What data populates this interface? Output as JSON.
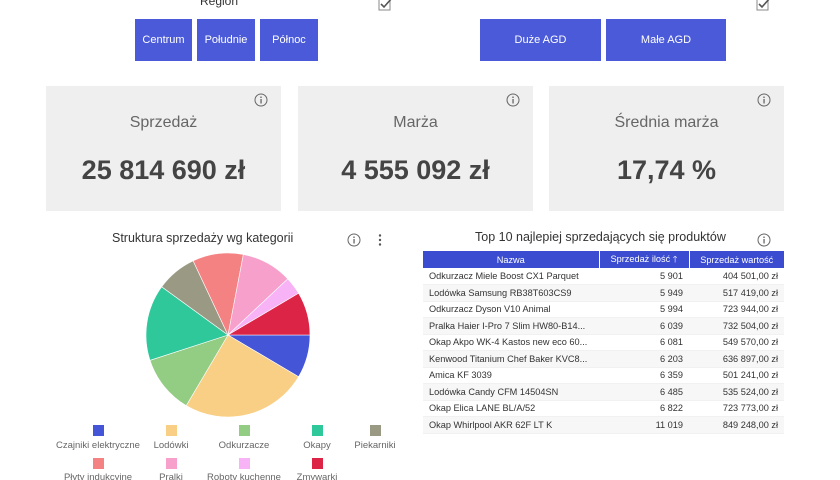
{
  "slicers": {
    "region": {
      "title": "Region",
      "buttons": [
        "Centrum",
        "Południe",
        "Północ"
      ]
    },
    "category": {
      "buttons": [
        "Duże AGD",
        "Małe AGD"
      ]
    }
  },
  "kpis": [
    {
      "label": "Sprzedaż",
      "value": "25 814 690 zł"
    },
    {
      "label": "Marża",
      "value": "4 555 092 zł"
    },
    {
      "label": "Średnia marża",
      "value": "17,74 %"
    }
  ],
  "pie": {
    "title": "Struktura sprzedaży wg kategorii"
  },
  "chart_data": {
    "type": "pie",
    "title": "Struktura sprzedaży wg kategorii",
    "legend_position": "bottom",
    "categories": [
      "Czajniki elektryczne",
      "Lodówki",
      "Odkurzacze",
      "Okapy",
      "Piekarniki",
      "Płyty indukcyjne",
      "Pralki",
      "Roboty kuchenne",
      "Zmywarki"
    ],
    "values": [
      8.5,
      25.0,
      11.5,
      15.0,
      8.0,
      10.0,
      10.0,
      3.5,
      8.5
    ],
    "colors": [
      "#4455d8",
      "#f8cf85",
      "#93cc83",
      "#2ec89a",
      "#9a9a84",
      "#f58282",
      "#f7a0cb",
      "#f7b3f5",
      "#dc2447"
    ]
  },
  "table": {
    "title": "Top 10 najlepiej sprzedających się produktów",
    "headers": [
      "Nazwa",
      "Sprzedaż ilość",
      "Sprzedaż wartość"
    ],
    "sort_indicator": "🡑",
    "rows": [
      [
        "Odkurzacz Miele Boost CX1 Parquet",
        "5 901",
        "404 501,00 zł"
      ],
      [
        "Lodówka Samsung RB38T603CS9",
        "5 949",
        "517 419,00 zł"
      ],
      [
        "Odkurzacz Dyson V10 Animal",
        "5 994",
        "723 944,00 zł"
      ],
      [
        "Pralka Haier I-Pro 7 Slim HW80-B14...",
        "6 039",
        "732 504,00 zł"
      ],
      [
        "Okap Akpo WK-4 Kastos new eco 60...",
        "6 081",
        "549 570,00 zł"
      ],
      [
        "Kenwood Titanium Chef Baker KVC8...",
        "6 203",
        "636 897,00 zł"
      ],
      [
        "Amica KF 3039",
        "6 359",
        "501 241,00 zł"
      ],
      [
        "Lodówka Candy CFM 14504SN",
        "6 485",
        "535 524,00 zł"
      ],
      [
        "Okap Elica LANE BL/A/52",
        "6 822",
        "723 773,00 zł"
      ],
      [
        "Okap Whirlpool AKR 62F LT K",
        "11 019",
        "849 248,00 zł"
      ]
    ]
  }
}
